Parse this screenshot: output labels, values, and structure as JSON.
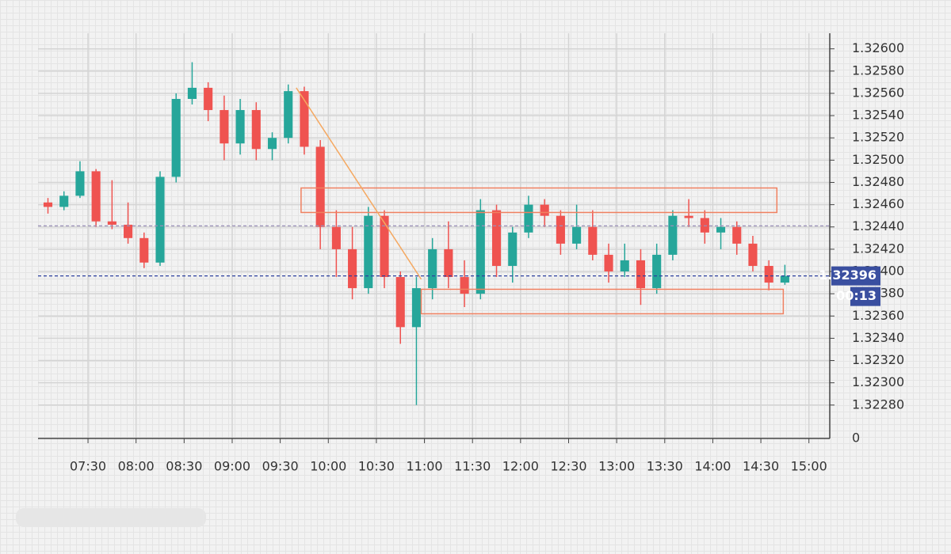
{
  "chart_data": {
    "type": "candlestick",
    "x": [
      "07:00",
      "07:10",
      "07:20",
      "07:30",
      "07:40",
      "07:50",
      "08:00",
      "08:10",
      "08:20",
      "08:30",
      "08:40",
      "08:50",
      "09:00",
      "09:10",
      "09:20",
      "09:30",
      "09:40",
      "09:50",
      "10:00",
      "10:10",
      "10:20",
      "10:30",
      "10:40",
      "10:50",
      "11:00",
      "11:10",
      "11:20",
      "11:30",
      "11:40",
      "11:50",
      "12:00",
      "12:10",
      "12:20",
      "12:30",
      "12:40",
      "12:50",
      "13:00",
      "13:10",
      "13:20",
      "13:30",
      "13:40",
      "13:50",
      "14:00",
      "14:10",
      "14:20",
      "14:30",
      "14:40"
    ],
    "open": [
      1.32462,
      1.32458,
      1.32468,
      1.3249,
      1.32445,
      1.32442,
      1.3243,
      1.32408,
      1.32485,
      1.32555,
      1.32565,
      1.32545,
      1.32515,
      1.32545,
      1.3251,
      1.3252,
      1.32562,
      1.32512,
      1.3244,
      1.3242,
      1.32385,
      1.3245,
      1.32395,
      1.3235,
      1.32385,
      1.3242,
      1.32395,
      1.3238,
      1.32455,
      1.32405,
      1.32435,
      1.3246,
      1.3245,
      1.32425,
      1.3244,
      1.32415,
      1.324,
      1.3241,
      1.32385,
      1.32415,
      1.3245,
      1.32448,
      1.32435,
      1.3244,
      1.32425,
      1.32405,
      1.3239
    ],
    "high": [
      1.32466,
      1.32472,
      1.32499,
      1.32492,
      1.32482,
      1.32462,
      1.32435,
      1.3249,
      1.3256,
      1.32588,
      1.3257,
      1.32558,
      1.32555,
      1.32552,
      1.32525,
      1.32568,
      1.32566,
      1.32518,
      1.32455,
      1.3244,
      1.32458,
      1.32455,
      1.324,
      1.32395,
      1.3243,
      1.32445,
      1.3241,
      1.32465,
      1.3246,
      1.3244,
      1.32468,
      1.32465,
      1.32455,
      1.3246,
      1.32455,
      1.32425,
      1.32425,
      1.3242,
      1.32425,
      1.32455,
      1.32465,
      1.32455,
      1.32448,
      1.32445,
      1.32432,
      1.3241,
      1.32406
    ],
    "low": [
      1.32452,
      1.32455,
      1.32466,
      1.3244,
      1.32438,
      1.32425,
      1.32403,
      1.32405,
      1.3248,
      1.3255,
      1.32535,
      1.325,
      1.32505,
      1.325,
      1.325,
      1.32515,
      1.32505,
      1.3242,
      1.32395,
      1.32375,
      1.3238,
      1.32385,
      1.32335,
      1.3228,
      1.32375,
      1.32385,
      1.32368,
      1.32375,
      1.32395,
      1.3239,
      1.3243,
      1.3244,
      1.32415,
      1.3242,
      1.3241,
      1.3239,
      1.32395,
      1.3237,
      1.3238,
      1.3241,
      1.3244,
      1.32425,
      1.3242,
      1.32415,
      1.324,
      1.32383,
      1.32388
    ],
    "close": [
      1.32458,
      1.32468,
      1.3249,
      1.32445,
      1.32442,
      1.3243,
      1.32408,
      1.32485,
      1.32555,
      1.32565,
      1.32545,
      1.32515,
      1.32545,
      1.3251,
      1.3252,
      1.32562,
      1.32512,
      1.3244,
      1.3242,
      1.32385,
      1.3245,
      1.32395,
      1.3235,
      1.32385,
      1.3242,
      1.32395,
      1.3238,
      1.32455,
      1.32405,
      1.32435,
      1.3246,
      1.3245,
      1.32425,
      1.3244,
      1.32415,
      1.324,
      1.3241,
      1.32385,
      1.32415,
      1.3245,
      1.32448,
      1.32435,
      1.3244,
      1.32425,
      1.32405,
      1.3239,
      1.32396
    ],
    "up_color": "#26a69a",
    "down_color": "#ef5350",
    "xlim": [
      "07:00",
      "15:13"
    ],
    "xticks": [
      "07:30",
      "08:00",
      "08:30",
      "09:00",
      "09:30",
      "10:00",
      "10:30",
      "11:00",
      "11:30",
      "12:00",
      "12:30",
      "13:00",
      "13:30",
      "14:00",
      "14:30",
      "15:00"
    ],
    "ylim": [
      1.3225,
      1.32614
    ],
    "yticks": [
      {
        "value": 1.326,
        "label": "1.32600"
      },
      {
        "value": 1.3258,
        "label": "1.32580"
      },
      {
        "value": 1.3256,
        "label": "1.32560"
      },
      {
        "value": 1.3254,
        "label": "1.32540"
      },
      {
        "value": 1.3252,
        "label": "1.32520"
      },
      {
        "value": 1.325,
        "label": "1.32500"
      },
      {
        "value": 1.3248,
        "label": "1.32480"
      },
      {
        "value": 1.3246,
        "label": "1.32460"
      },
      {
        "value": 1.3244,
        "label": "1.32440"
      },
      {
        "value": 1.3242,
        "label": "1.32420"
      },
      {
        "value": 1.324,
        "label": "1.32400"
      },
      {
        "value": 1.3238,
        "label": "1.32380"
      },
      {
        "value": 1.3236,
        "label": "1.32360"
      },
      {
        "value": 1.3234,
        "label": "1.32340"
      },
      {
        "value": 1.3232,
        "label": "1.32320"
      },
      {
        "value": 1.323,
        "label": "1.32300"
      },
      {
        "value": 1.3228,
        "label": "1.32280"
      }
    ],
    "axis_floor_label": "0",
    "grid": true,
    "last_price": {
      "value": 1.32396,
      "label": "1.32396"
    },
    "countdown": "00:13",
    "hlines": [
      {
        "value": 1.32441,
        "color": "#9a8fb8"
      },
      {
        "value": 1.32396,
        "color": "#2b3f9e"
      }
    ],
    "rects": [
      {
        "x": [
          "09:43",
          "14:40"
        ],
        "y": [
          1.32453,
          1.32475
        ],
        "color": "#f08060"
      },
      {
        "x": [
          "10:58",
          "14:44"
        ],
        "y": [
          1.32362,
          1.32384
        ],
        "color": "#f08060"
      }
    ],
    "trendline": {
      "x": [
        "09:40",
        "10:58"
      ],
      "y": [
        1.32565,
        1.32393
      ],
      "color": "#f5a860"
    }
  }
}
